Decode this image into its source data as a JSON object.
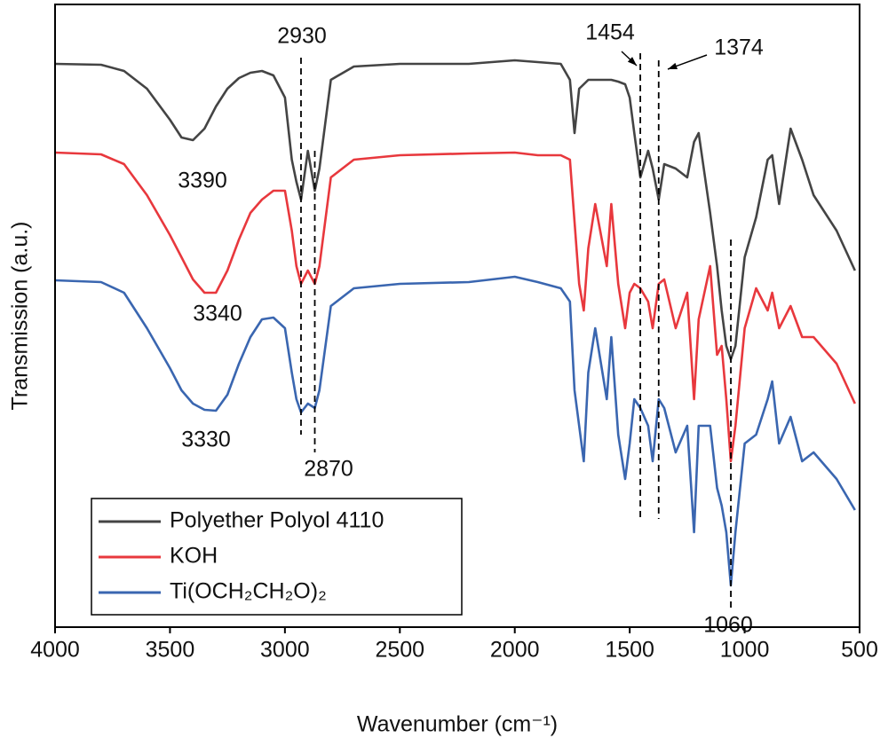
{
  "chart_data": {
    "type": "line",
    "x_label": "Wavenumber (cm⁻¹)",
    "y_label": "Transmission (a.u.)",
    "xlim": [
      4000,
      500
    ],
    "ylim": [
      0,
      702
    ],
    "xticks": [
      4000,
      3500,
      3000,
      2500,
      2000,
      1500,
      1000,
      500
    ],
    "x": [
      4000,
      3800,
      3700,
      3600,
      3500,
      3450,
      3400,
      3350,
      3300,
      3250,
      3200,
      3150,
      3100,
      3050,
      3000,
      2970,
      2950,
      2930,
      2900,
      2870,
      2850,
      2800,
      2700,
      2500,
      2200,
      2000,
      1900,
      1800,
      1760,
      1740,
      1720,
      1700,
      1680,
      1650,
      1600,
      1580,
      1550,
      1520,
      1500,
      1480,
      1454,
      1420,
      1400,
      1374,
      1350,
      1300,
      1250,
      1220,
      1200,
      1150,
      1120,
      1100,
      1080,
      1060,
      1040,
      1000,
      950,
      900,
      880,
      850,
      800,
      750,
      700,
      600,
      520
    ],
    "series": [
      {
        "name": "Polyether Polyol 4110",
        "color": "#444444",
        "values": [
          635,
          634,
          627,
          607,
          572,
          552,
          549,
          562,
          587,
          607,
          619,
          625,
          627,
          622,
          597,
          527,
          502,
          482,
          537,
          492,
          517,
          617,
          632,
          635,
          635,
          639,
          637,
          635,
          617,
          557,
          607,
          612,
          617,
          617,
          617,
          617,
          615,
          612,
          597,
          557,
          507,
          537,
          517,
          482,
          522,
          517,
          507,
          547,
          557,
          467,
          407,
          357,
          317,
          302,
          317,
          417,
          462,
          527,
          532,
          477,
          562,
          527,
          487,
          447,
          402
        ]
      },
      {
        "name": "KOH",
        "color": "#e8383d",
        "values": [
          535,
          533,
          522,
          487,
          442,
          417,
          392,
          377,
          377,
          402,
          437,
          467,
          482,
          492,
          492,
          447,
          407,
          387,
          402,
          387,
          407,
          507,
          527,
          532,
          534,
          535,
          532,
          532,
          527,
          457,
          387,
          357,
          427,
          477,
          407,
          477,
          387,
          337,
          377,
          387,
          382,
          367,
          337,
          387,
          392,
          337,
          377,
          257,
          347,
          407,
          307,
          317,
          257,
          187,
          227,
          337,
          382,
          357,
          377,
          337,
          362,
          327,
          327,
          297,
          252
        ]
      },
      {
        "name": "Ti(OCH₂CH₂O)₂",
        "color": "#3a66b0",
        "values": [
          391,
          389,
          377,
          337,
          292,
          267,
          252,
          245,
          244,
          262,
          297,
          327,
          347,
          349,
          337,
          287,
          257,
          242,
          252,
          247,
          267,
          362,
          382,
          387,
          389,
          395,
          389,
          382,
          367,
          267,
          227,
          187,
          287,
          337,
          257,
          327,
          217,
          167,
          207,
          257,
          247,
          227,
          187,
          257,
          247,
          197,
          227,
          107,
          227,
          227,
          157,
          137,
          107,
          47,
          107,
          207,
          217,
          257,
          277,
          207,
          237,
          187,
          197,
          167,
          132
        ]
      }
    ],
    "peak_labels": [
      2930,
      3390,
      3340,
      3330,
      2870,
      1454,
      1374,
      1060
    ],
    "legend": "lower-left"
  }
}
